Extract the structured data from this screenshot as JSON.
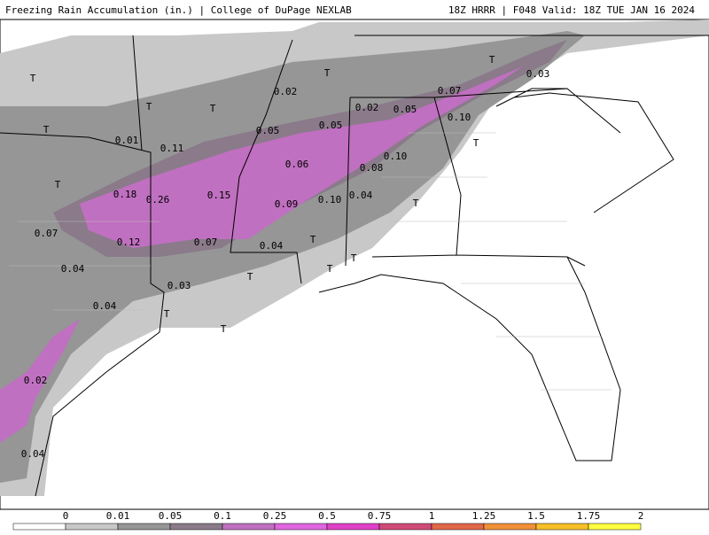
{
  "header": {
    "title": "Freezing Rain Accumulation (in.) | College of DuPage NEXLAB",
    "run": "18Z HRRR | F048 Valid: 18Z TUE JAN 16 2024"
  },
  "map_labels": [
    "T",
    "T",
    "T",
    "0.01",
    "0.11",
    "T",
    "0.18",
    "0.26",
    "0.15",
    "0.07",
    "0.12",
    "0.07",
    "0.04",
    "0.03",
    "0.04",
    "T",
    "T",
    "0.02",
    "0.04",
    "0.02",
    "T",
    "T",
    "0.05",
    "0.05",
    "0.06",
    "0.09",
    "0.10",
    "0.04",
    "T",
    "T",
    "T",
    "T",
    "0.02",
    "0.05",
    "0.10",
    "0.08",
    "0.04",
    "T",
    "0.07",
    "0.10",
    "T",
    "T",
    "0.03"
  ],
  "colorbar": {
    "labels": [
      "0",
      "0.01",
      "0.05",
      "0.1",
      "0.25",
      "0.5",
      "0.75",
      "1",
      "1.25",
      "1.5",
      "1.75",
      "2"
    ],
    "colors": [
      "#ffffff",
      "#c8c8c8",
      "#969696",
      "#8a7a8a",
      "#c070c0",
      "#e066e0",
      "#e040c8",
      "#d04a78",
      "#e06848",
      "#f09038",
      "#f8c028",
      "#ffff40"
    ]
  }
}
